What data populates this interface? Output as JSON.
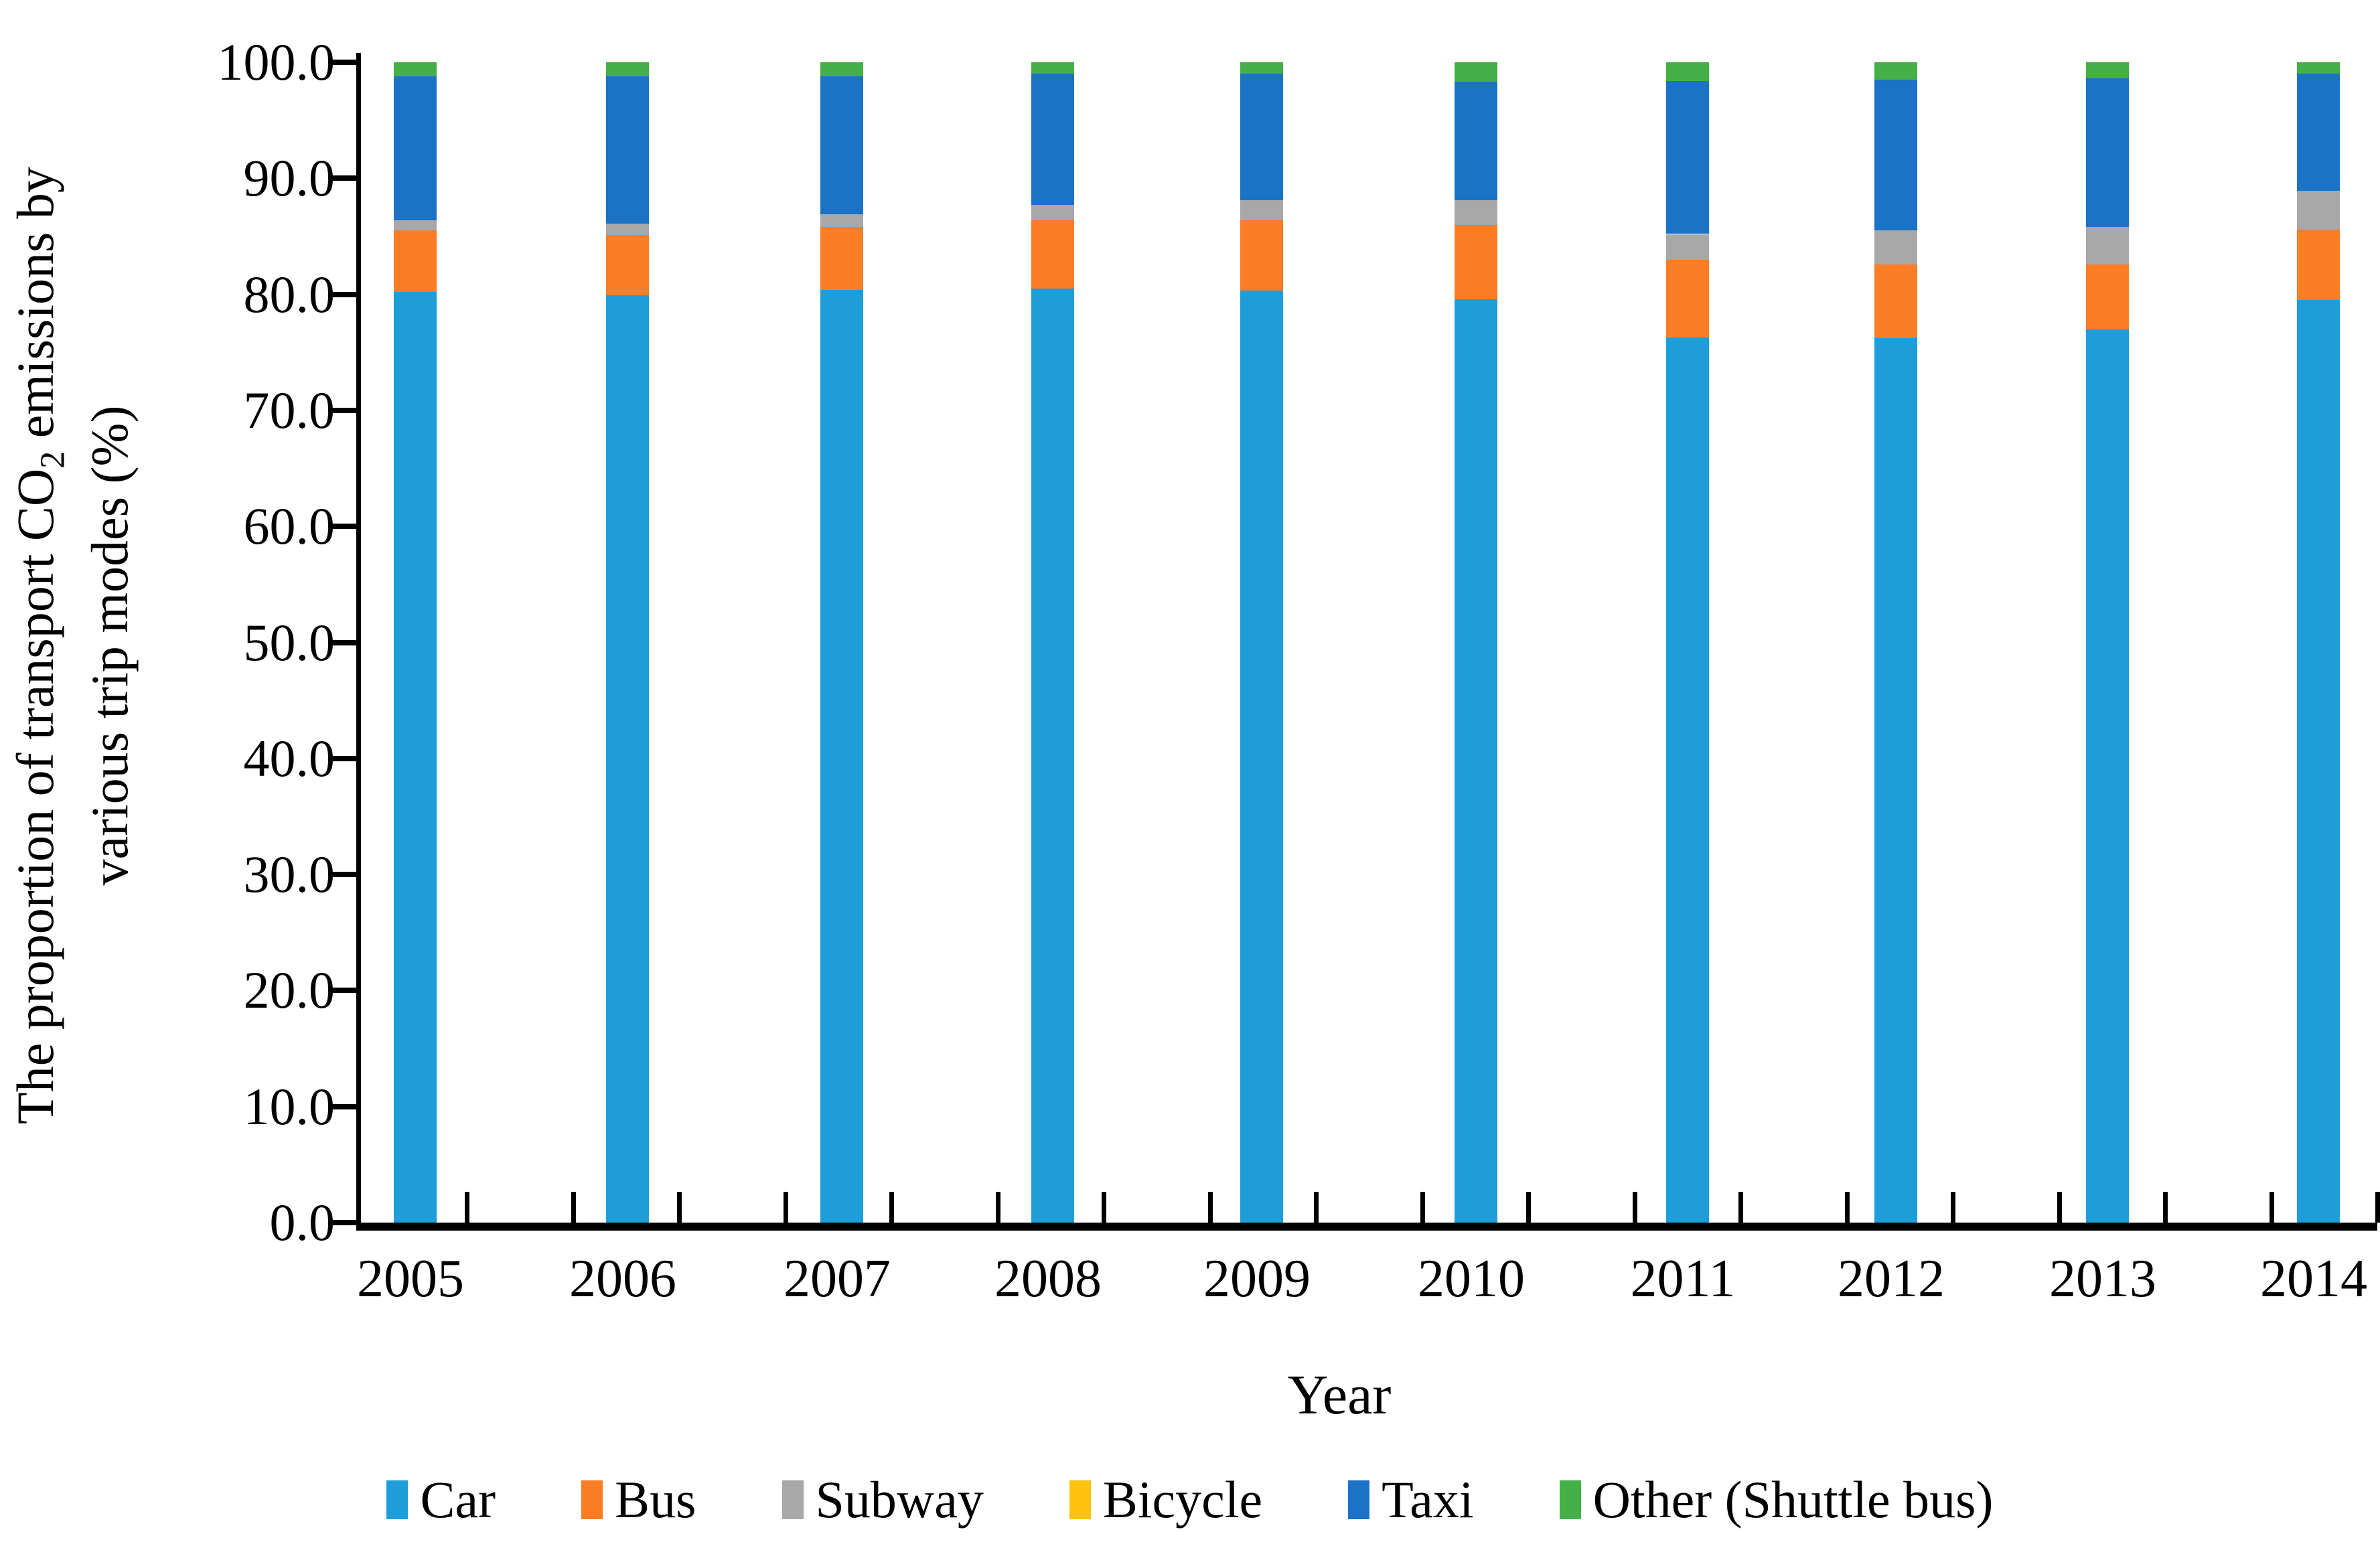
{
  "y_axis": {
    "title_line1_pre": "The proportion of transport CO",
    "title_sub": "2",
    "title_line1_post": " emissions by",
    "title_line2": "various trip modes (%)",
    "tick_labels": [
      "100.0",
      "90.0",
      "80.0",
      "70.0",
      "60.0",
      "50.0",
      "40.0",
      "30.0",
      "20.0",
      "10.0",
      "0.0"
    ]
  },
  "x_axis": {
    "title": "Year",
    "tick_labels": [
      "2005",
      "2006",
      "2007",
      "2008",
      "2009",
      "2010",
      "2011",
      "2012",
      "2013",
      "2014"
    ]
  },
  "colors": {
    "car": "#1E9ED9",
    "bus": "#FB7D26",
    "subway": "#A8A8A8",
    "bicycle": "#FFC20E",
    "taxi": "#1B73C5",
    "other": "#45B047",
    "axis": "#000000"
  },
  "chart_data": {
    "type": "bar",
    "stacked": true,
    "title": "",
    "xlabel": "Year",
    "ylabel": "The proportion of transport CO2 emissions by various trip modes (%)",
    "ylim": [
      0,
      100
    ],
    "y_tick_step": 10,
    "grid": false,
    "legend_position": "bottom",
    "categories": [
      "2005",
      "2006",
      "2007",
      "2008",
      "2009",
      "2010",
      "2011",
      "2012",
      "2013",
      "2014"
    ],
    "series": [
      {
        "name": "Car",
        "color": "#1E9ED9",
        "values": [
          80.2,
          79.9,
          80.4,
          80.5,
          80.3,
          79.6,
          76.3,
          76.2,
          77.0,
          79.5
        ]
      },
      {
        "name": "Bus",
        "color": "#FB7D26",
        "values": [
          5.3,
          5.2,
          5.4,
          5.9,
          6.1,
          6.4,
          6.7,
          6.4,
          5.6,
          6.1
        ]
      },
      {
        "name": "Subway",
        "color": "#A8A8A8",
        "values": [
          0.9,
          1.0,
          1.1,
          1.3,
          1.7,
          2.1,
          2.2,
          2.9,
          3.2,
          3.3
        ]
      },
      {
        "name": "Bicycle",
        "color": "#FFC20E",
        "values": [
          0.0,
          0.0,
          0.0,
          0.0,
          0.0,
          0.0,
          0.0,
          0.0,
          0.0,
          0.0
        ]
      },
      {
        "name": "Taxi",
        "color": "#1B73C5",
        "values": [
          12.4,
          12.7,
          11.9,
          11.3,
          10.9,
          10.2,
          13.2,
          13.0,
          12.8,
          10.1
        ]
      },
      {
        "name": "Other (Shuttle bus)",
        "color": "#45B047",
        "values": [
          1.2,
          1.2,
          1.2,
          1.0,
          1.0,
          1.7,
          1.6,
          1.5,
          1.4,
          1.0
        ]
      }
    ]
  }
}
